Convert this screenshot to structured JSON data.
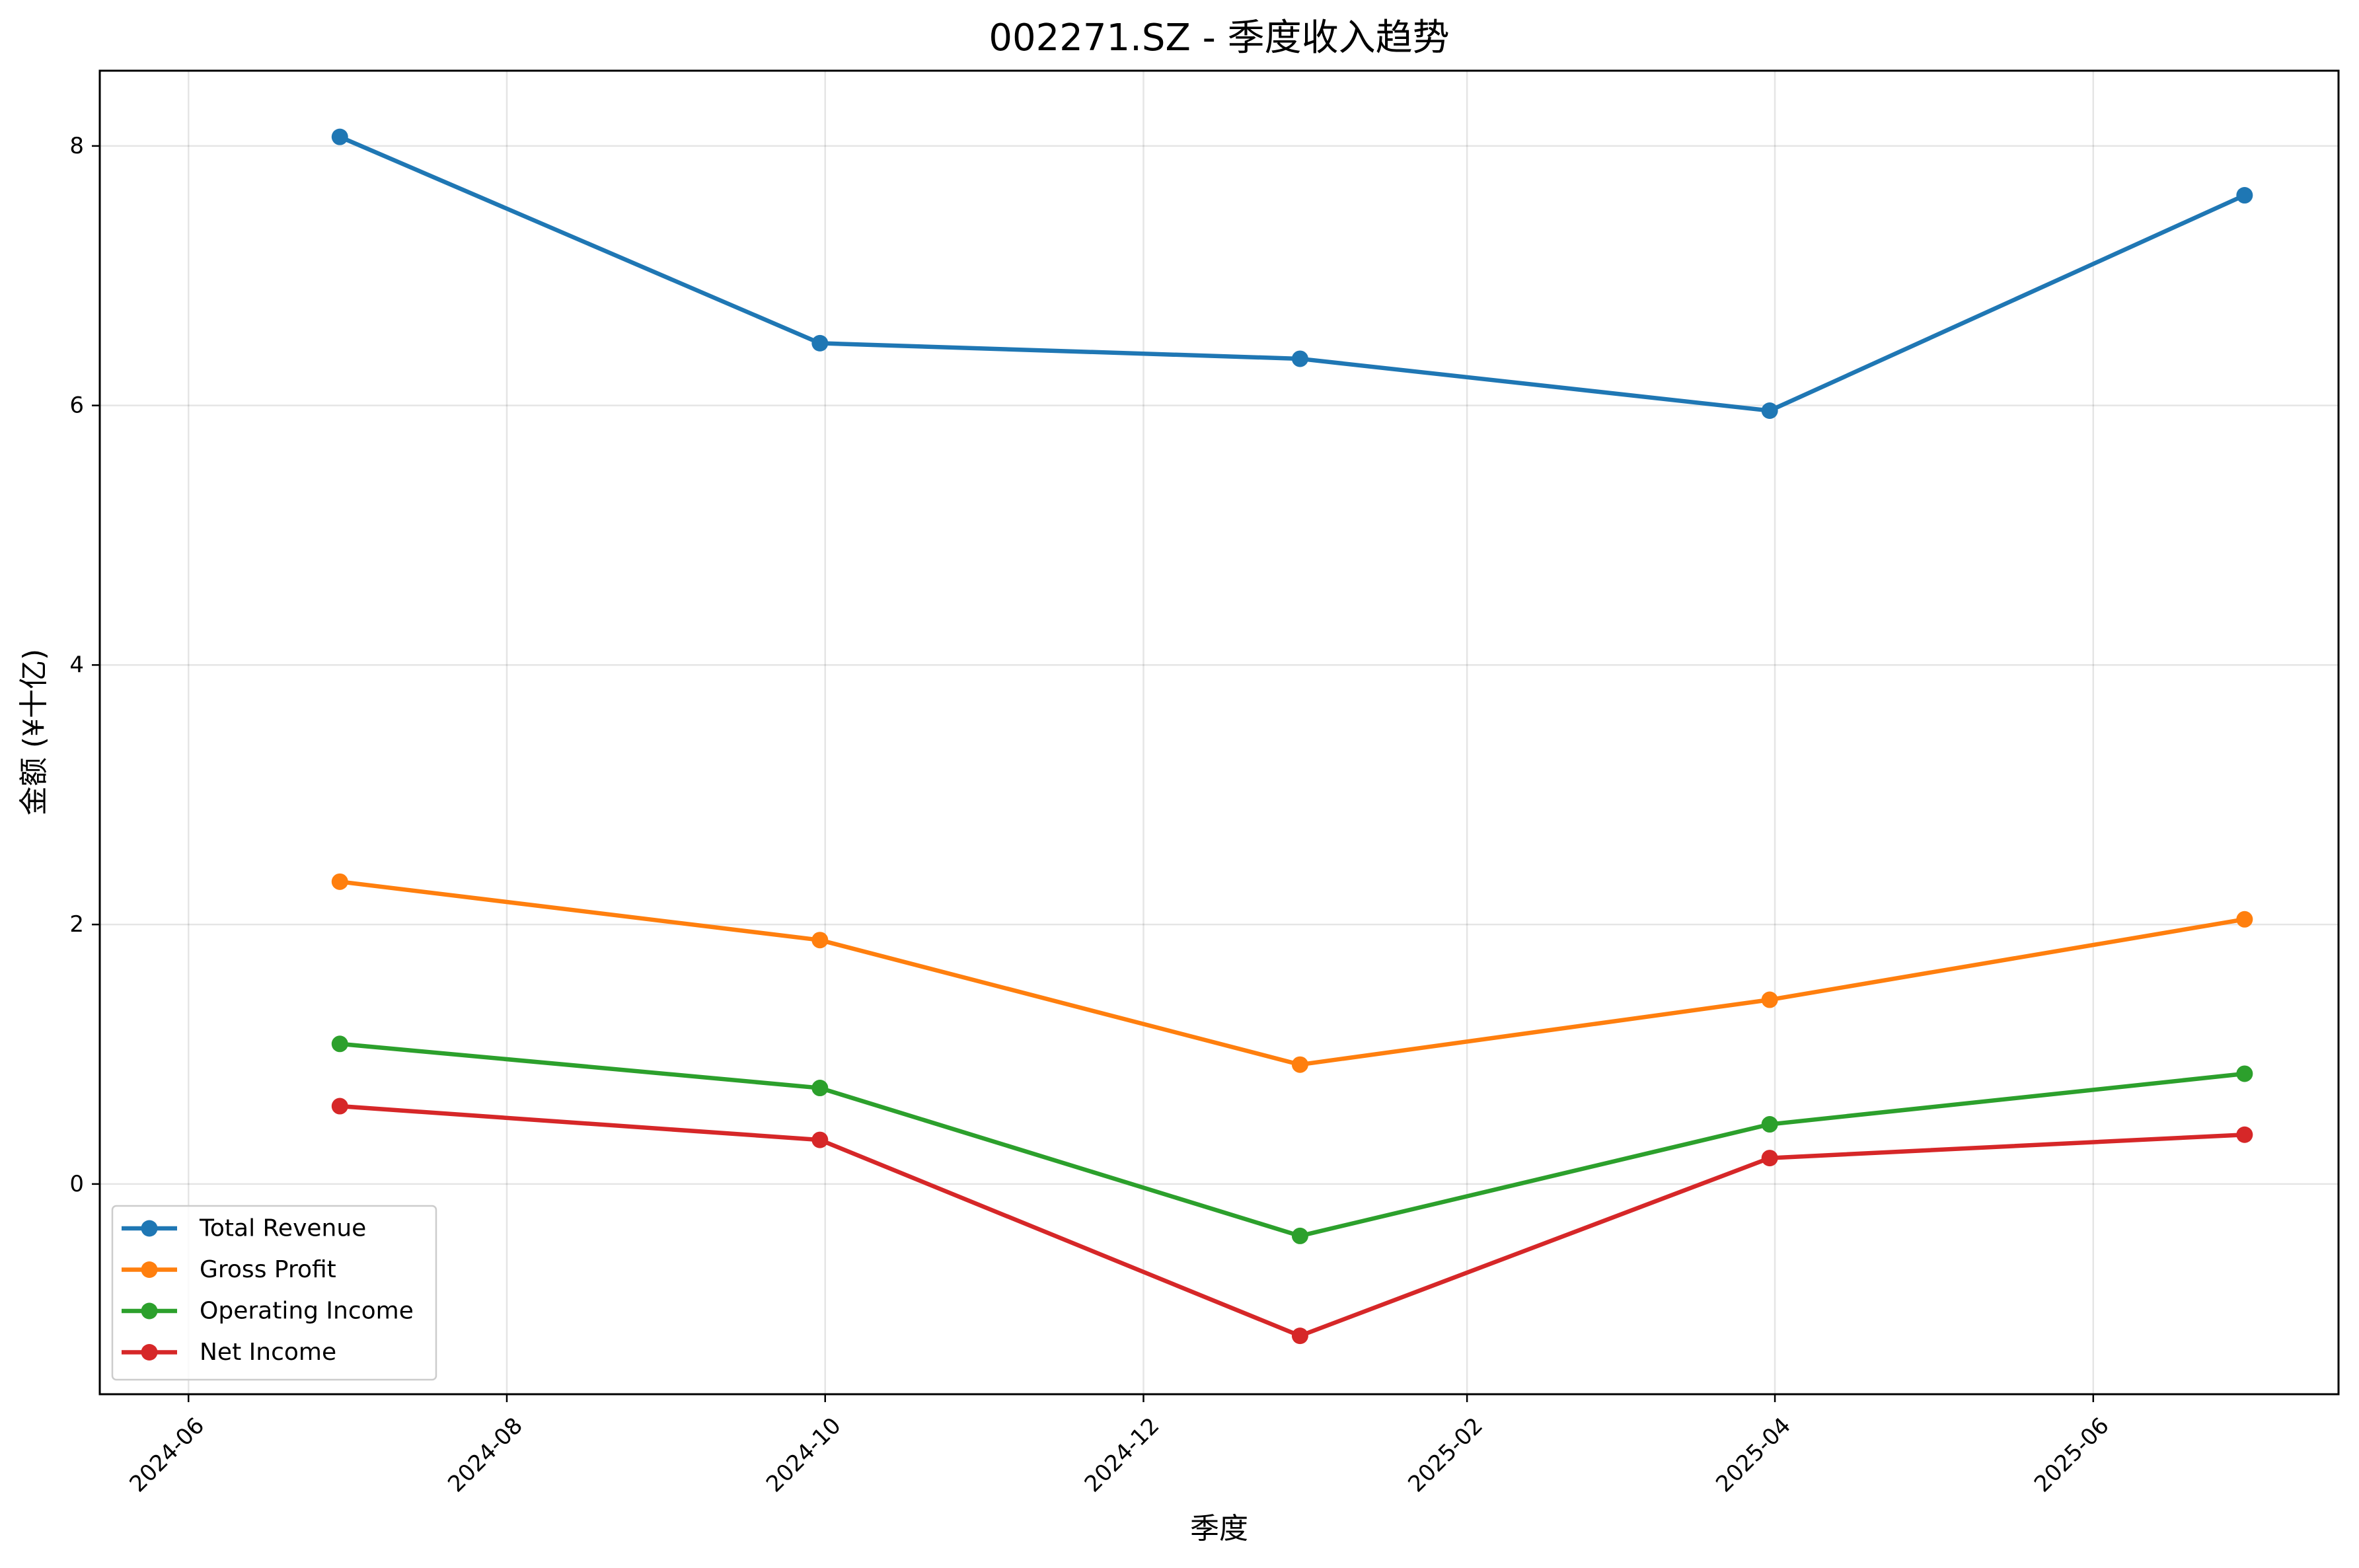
{
  "chart_data": {
    "type": "line",
    "title": "002271.SZ - 季度收入趋势",
    "xlabel": "季度",
    "ylabel": "金额 (¥十亿)",
    "x": [
      "2024-06-30",
      "2024-09-30",
      "2024-12-31",
      "2025-03-31",
      "2025-06-30"
    ],
    "x_ticks": [
      {
        "date": "2024-06-01",
        "label": "2024-06"
      },
      {
        "date": "2024-08-01",
        "label": "2024-08"
      },
      {
        "date": "2024-10-01",
        "label": "2024-10"
      },
      {
        "date": "2024-12-01",
        "label": "2024-12"
      },
      {
        "date": "2025-02-01",
        "label": "2025-02"
      },
      {
        "date": "2025-04-01",
        "label": "2025-04"
      },
      {
        "date": "2025-06-01",
        "label": "2025-06"
      }
    ],
    "xlim": [
      "2024-05-15",
      "2025-07-18"
    ],
    "ylim": [
      -1.62,
      8.58
    ],
    "y_ticks": [
      0,
      2,
      4,
      6,
      8
    ],
    "grid": true,
    "legend_position": "lower-left",
    "series": [
      {
        "name": "Total Revenue",
        "color": "#1f77b4",
        "values": [
          8.07,
          6.48,
          6.36,
          5.96,
          7.62
        ]
      },
      {
        "name": "Gross Profit",
        "color": "#ff7f0e",
        "values": [
          2.33,
          1.88,
          0.92,
          1.42,
          2.04
        ]
      },
      {
        "name": "Operating Income",
        "color": "#2ca02c",
        "values": [
          1.08,
          0.74,
          -0.4,
          0.46,
          0.85
        ]
      },
      {
        "name": "Net Income",
        "color": "#d62728",
        "values": [
          0.6,
          0.34,
          -1.17,
          0.2,
          0.38
        ]
      }
    ]
  }
}
